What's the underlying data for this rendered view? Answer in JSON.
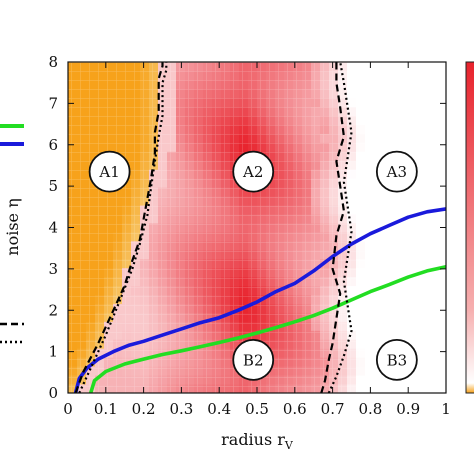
{
  "chart_data": {
    "type": "heatmap",
    "title": "",
    "xlabel": "radius r",
    "xlabel_subscript": "V",
    "ylabel": "noise η",
    "xlim": [
      0,
      1
    ],
    "ylim": [
      0,
      8
    ],
    "x_ticks": [
      "0",
      "0.1",
      "0.2",
      "0.3",
      "0.4",
      "0.5",
      "0.6",
      "0.7",
      "0.8",
      "0.9",
      "1"
    ],
    "y_ticks": [
      "0",
      "1",
      "2",
      "3",
      "4",
      "5",
      "6",
      "7",
      "8"
    ],
    "grid": true,
    "colors": {
      "background_low": "#ffffff",
      "mid": "#f06060",
      "high": "#e8222c",
      "phase_a1": "#f7a21b",
      "blue_line": "#1a1adb",
      "green_line": "#22dd22",
      "boundary": "#000000"
    },
    "regions": [
      {
        "label": "A1",
        "x": 0.11,
        "y": 5.35
      },
      {
        "label": "A2",
        "x": 0.49,
        "y": 5.35
      },
      {
        "label": "A3",
        "x": 0.87,
        "y": 5.35
      },
      {
        "label": "B2",
        "x": 0.49,
        "y": 0.8
      },
      {
        "label": "B3",
        "x": 0.87,
        "y": 0.8
      }
    ],
    "series": [
      {
        "style": "blue_line",
        "x": [
          0.02,
          0.03,
          0.05,
          0.08,
          0.12,
          0.16,
          0.2,
          0.25,
          0.3,
          0.35,
          0.4,
          0.45,
          0.5,
          0.55,
          0.6,
          0.65,
          0.7,
          0.75,
          0.8,
          0.85,
          0.9,
          0.95,
          1.0
        ],
        "y": [
          0.0,
          0.35,
          0.6,
          0.82,
          1.0,
          1.15,
          1.25,
          1.4,
          1.55,
          1.7,
          1.82,
          2.0,
          2.2,
          2.45,
          2.65,
          2.95,
          3.3,
          3.6,
          3.85,
          4.05,
          4.25,
          4.38,
          4.45
        ]
      },
      {
        "style": "green_line",
        "x": [
          0.06,
          0.07,
          0.1,
          0.15,
          0.2,
          0.25,
          0.3,
          0.35,
          0.4,
          0.45,
          0.5,
          0.55,
          0.6,
          0.65,
          0.7,
          0.75,
          0.8,
          0.85,
          0.9,
          0.95,
          1.0
        ],
        "y": [
          0.0,
          0.3,
          0.52,
          0.7,
          0.82,
          0.93,
          1.02,
          1.12,
          1.22,
          1.33,
          1.45,
          1.58,
          1.72,
          1.87,
          2.05,
          2.25,
          2.45,
          2.62,
          2.8,
          2.95,
          3.05
        ]
      },
      {
        "style": "boundary-dashed",
        "x": [
          0.02,
          0.04,
          0.08,
          0.12,
          0.15,
          0.17,
          0.19,
          0.2,
          0.21,
          0.22,
          0.23,
          0.23,
          0.24,
          0.24,
          0.24,
          0.25,
          0.25
        ],
        "y": [
          0.0,
          0.5,
          1.2,
          2.0,
          2.6,
          3.2,
          3.7,
          4.2,
          4.7,
          5.2,
          5.8,
          6.3,
          6.8,
          7.2,
          7.6,
          7.9,
          8.0
        ]
      },
      {
        "style": "boundary-dotted",
        "x": [
          0.03,
          0.06,
          0.1,
          0.14,
          0.17,
          0.19,
          0.21,
          0.22,
          0.23,
          0.24,
          0.25,
          0.25,
          0.25,
          0.26,
          0.26
        ],
        "y": [
          0.0,
          0.6,
          1.4,
          2.3,
          3.0,
          3.6,
          4.3,
          5.0,
          5.6,
          6.2,
          6.7,
          7.1,
          7.5,
          7.8,
          8.0
        ]
      },
      {
        "style": "boundary-dashed",
        "x": [
          0.67,
          0.68,
          0.69,
          0.7,
          0.71,
          0.72,
          0.7,
          0.71,
          0.73,
          0.72,
          0.71,
          0.73,
          0.72,
          0.71,
          0.71
        ],
        "y": [
          0.0,
          0.3,
          0.8,
          1.2,
          1.8,
          2.4,
          3.0,
          3.8,
          4.4,
          5.0,
          5.6,
          6.2,
          6.9,
          7.5,
          8.0
        ]
      },
      {
        "style": "boundary-dotted",
        "x": [
          0.69,
          0.71,
          0.73,
          0.75,
          0.74,
          0.73,
          0.74,
          0.75,
          0.74,
          0.73,
          0.74,
          0.75,
          0.74,
          0.73,
          0.72
        ],
        "y": [
          0.0,
          0.4,
          0.9,
          1.5,
          2.1,
          2.7,
          3.3,
          3.9,
          4.5,
          5.1,
          5.7,
          6.3,
          6.9,
          7.5,
          8.0
        ]
      }
    ]
  }
}
